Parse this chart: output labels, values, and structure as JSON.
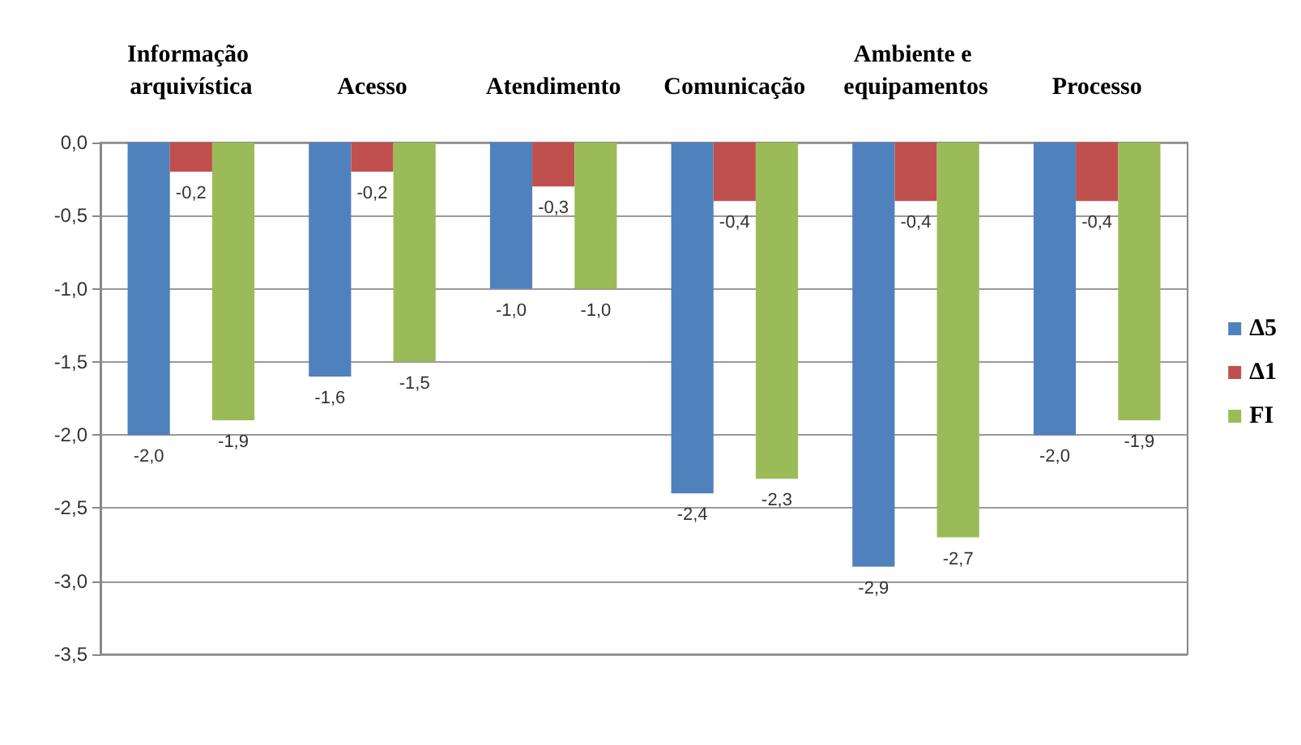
{
  "chart_data": {
    "type": "bar",
    "categories": [
      "Informação arquivística",
      "Acesso",
      "Atendimento",
      "Comunicação",
      "Ambiente e equipamentos",
      "Processo"
    ],
    "series": [
      {
        "name": "Δ5",
        "color": "#4f81bd",
        "values": [
          -2.0,
          -1.6,
          -1.0,
          -2.4,
          -2.9,
          -2.0
        ],
        "value_labels": [
          "-2,0",
          "-1,6",
          "-1,0",
          "-2,4",
          "-2,9",
          "-2,0"
        ]
      },
      {
        "name": "Δ1",
        "color": "#c0504d",
        "values": [
          -0.2,
          -0.2,
          -0.3,
          -0.4,
          -0.4,
          -0.4
        ],
        "value_labels": [
          "-0,2",
          "-0,2",
          "-0,3",
          "-0,4",
          "-0,4",
          "-0,4"
        ]
      },
      {
        "name": "FI",
        "color": "#9bbb59",
        "values": [
          -1.9,
          -1.5,
          -1.0,
          -2.3,
          -2.7,
          -1.9
        ],
        "value_labels": [
          "-1,9",
          "-1,5",
          "-1,0",
          "-2,3",
          "-2,7",
          "-1,9"
        ]
      }
    ],
    "ylim": [
      -3.5,
      0
    ],
    "yticks": [
      {
        "value": -3.5,
        "label": "-3,5"
      },
      {
        "value": -3.0,
        "label": "-3,0"
      },
      {
        "value": -2.5,
        "label": "-2,5"
      },
      {
        "value": -2.0,
        "label": "-2,0"
      },
      {
        "value": -1.5,
        "label": "-1,5"
      },
      {
        "value": -1.0,
        "label": "-1,0"
      },
      {
        "value": -0.5,
        "label": "-0,5"
      },
      {
        "value": 0,
        "label": "0,0"
      }
    ],
    "grid": "y",
    "legend": "right"
  }
}
